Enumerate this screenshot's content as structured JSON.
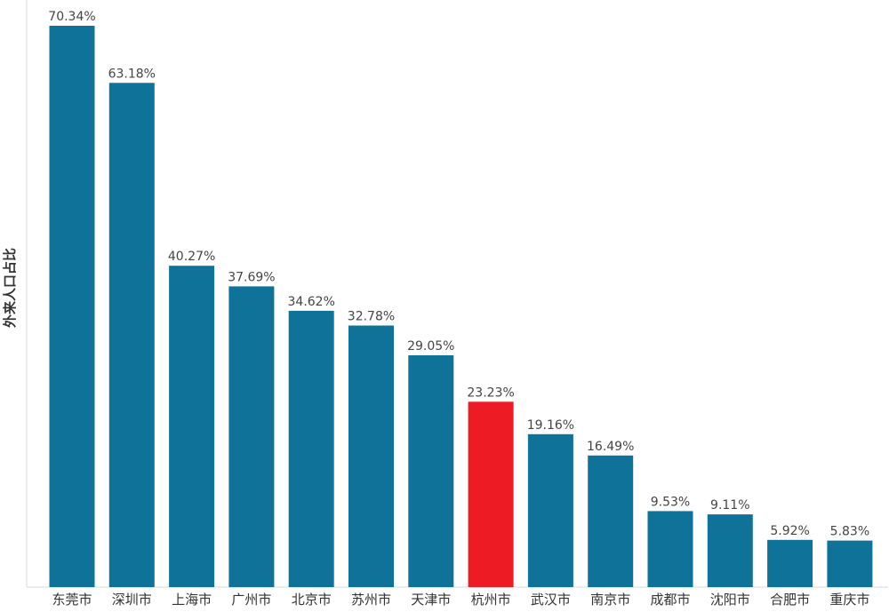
{
  "chart_data": {
    "type": "bar",
    "title": "",
    "xlabel": "",
    "ylabel": "外来人口占比",
    "categories": [
      "东莞市",
      "深圳市",
      "上海市",
      "广州市",
      "北京市",
      "苏州市",
      "天津市",
      "杭州市",
      "武汉市",
      "南京市",
      "成都市",
      "沈阳市",
      "合肥市",
      "重庆市"
    ],
    "values": [
      70.34,
      63.18,
      40.27,
      37.69,
      34.62,
      32.78,
      29.05,
      23.23,
      19.16,
      16.49,
      9.53,
      9.11,
      5.92,
      5.83
    ],
    "value_labels": [
      "70.34%",
      "63.18%",
      "40.27%",
      "37.69%",
      "34.62%",
      "32.78%",
      "29.05%",
      "23.23%",
      "19.16%",
      "16.49%",
      "9.53%",
      "9.11%",
      "5.92%",
      "5.83%"
    ],
    "highlight": "杭州市",
    "ylim": [
      0,
      70.34
    ],
    "grid": false,
    "legend": "none"
  },
  "colors": {
    "bar": "#0f7399",
    "highlight": "#ed1c24",
    "text": "#333333",
    "axis": "#d9d9d9"
  }
}
